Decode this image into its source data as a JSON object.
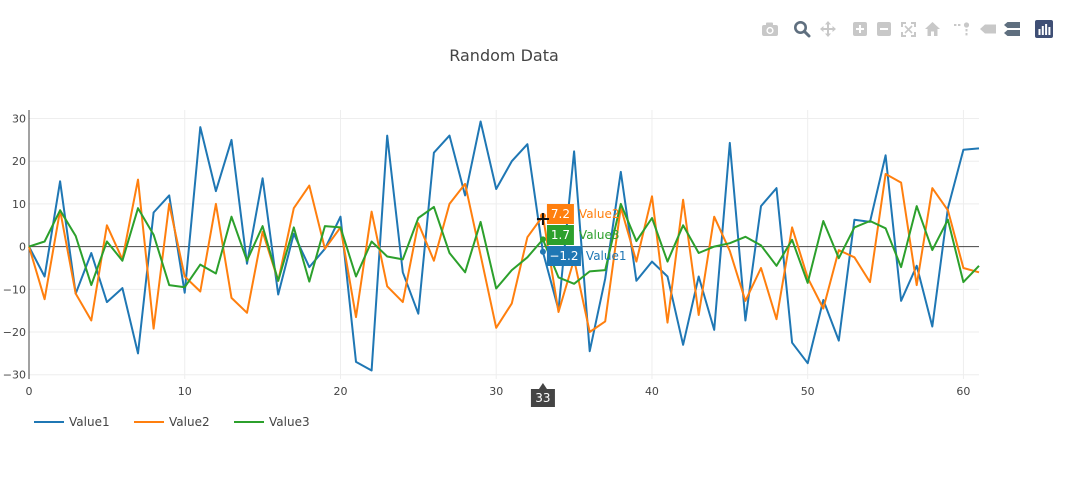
{
  "modebar": {
    "icons": [
      {
        "name": "camera-icon",
        "color": "#c8c8c8"
      },
      {
        "name": "zoom-icon",
        "color": "#5f6f7f"
      },
      {
        "name": "pan-icon",
        "color": "#c8c8c8"
      },
      {
        "name": "zoom-in-icon",
        "color": "#c8c8c8"
      },
      {
        "name": "zoom-out-icon",
        "color": "#c8c8c8"
      },
      {
        "name": "autoscale-icon",
        "color": "#c8c8c8"
      },
      {
        "name": "home-icon",
        "color": "#c8c8c8"
      },
      {
        "name": "spike-lines-icon",
        "color": "#c8c8c8"
      },
      {
        "name": "hover-closest-icon",
        "color": "#c8c8c8"
      },
      {
        "name": "hover-compare-icon",
        "color": "#5f6f7f"
      },
      {
        "name": "plotly-logo-icon",
        "color": "#3f4f75"
      }
    ]
  },
  "chart_data": {
    "type": "line",
    "title": "Random Data",
    "xlabel": "",
    "ylabel": "",
    "xlim": [
      0,
      61
    ],
    "ylim": [
      -31,
      32
    ],
    "x_ticks": [
      0,
      10,
      20,
      30,
      40,
      50,
      60
    ],
    "y_ticks": [
      -30,
      -20,
      -10,
      0,
      10,
      20,
      30
    ],
    "grid": true,
    "zero_line": true,
    "legend_position": "bottom-left",
    "series": [
      {
        "name": "Value1",
        "color": "#1f77b4",
        "x": [
          0,
          1,
          2,
          3,
          4,
          5,
          6,
          7,
          8,
          9,
          10,
          11,
          12,
          13,
          14,
          15,
          16,
          17,
          18,
          19,
          20,
          21,
          22,
          23,
          24,
          25,
          26,
          27,
          28,
          29,
          30,
          31,
          32,
          33,
          34,
          35,
          36,
          37,
          38,
          39,
          40,
          41,
          42,
          43,
          44,
          45,
          46,
          47,
          48,
          49,
          50,
          51,
          52,
          53,
          54,
          55,
          56,
          57,
          58,
          59,
          60,
          61
        ],
        "values": [
          0,
          -7,
          15.3,
          -11,
          -1.5,
          -13,
          -9.7,
          -25,
          8,
          12,
          -10.8,
          28,
          13,
          25,
          -4,
          16,
          -11.2,
          3,
          -4.8,
          -0.5,
          7,
          -27,
          -29,
          26,
          -6,
          -15.7,
          22,
          26,
          12,
          29.3,
          13.5,
          20,
          24,
          -1.2,
          -14.8,
          22.3,
          -24.5,
          -7.5,
          17.5,
          -8,
          -3.5,
          -7,
          -23,
          -7,
          -19.5,
          24.3,
          -17.3,
          9.5,
          13.7,
          -22.5,
          -27.3,
          -12.5,
          -22,
          6.3,
          5.8,
          21.4,
          -12.7,
          -4.5,
          -18.7,
          9,
          22.7,
          23
        ]
      },
      {
        "name": "Value2",
        "color": "#ff7f0e",
        "x": [
          0,
          1,
          2,
          3,
          4,
          5,
          6,
          7,
          8,
          9,
          10,
          11,
          12,
          13,
          14,
          15,
          16,
          17,
          18,
          19,
          20,
          21,
          22,
          23,
          24,
          25,
          26,
          27,
          28,
          29,
          30,
          31,
          32,
          33,
          34,
          35,
          36,
          37,
          38,
          39,
          40,
          41,
          42,
          43,
          44,
          45,
          46,
          47,
          48,
          49,
          50,
          51,
          52,
          53,
          54,
          55,
          56,
          57,
          58,
          59,
          60,
          61
        ],
        "values": [
          0,
          -12.3,
          8.5,
          -11,
          -17.3,
          5,
          -3,
          15.7,
          -19.2,
          10,
          -7,
          -10.5,
          10,
          -12,
          -15.5,
          3.5,
          -8,
          9,
          14.3,
          -0.5,
          4.5,
          -16.5,
          8.2,
          -9.3,
          -13,
          5.5,
          -3.3,
          10,
          14.7,
          -2,
          -19,
          -13.3,
          2.2,
          7.2,
          -15.3,
          -3,
          -20,
          -17.5,
          9.2,
          -3.5,
          11.8,
          -17.8,
          11,
          -16,
          7,
          -1,
          -12.7,
          -5,
          -17,
          4.5,
          -7.3,
          -14.5,
          -0.8,
          -2.5,
          -8.3,
          17,
          15,
          -9,
          13.7,
          8.5,
          -5,
          -6
        ]
      },
      {
        "name": "Value3",
        "color": "#2ca02c",
        "x": [
          0,
          1,
          2,
          3,
          4,
          5,
          6,
          7,
          8,
          9,
          10,
          11,
          12,
          13,
          14,
          15,
          16,
          17,
          18,
          19,
          20,
          21,
          22,
          23,
          24,
          25,
          26,
          27,
          28,
          29,
          30,
          31,
          32,
          33,
          34,
          35,
          36,
          37,
          38,
          39,
          40,
          41,
          42,
          43,
          44,
          45,
          46,
          47,
          48,
          49,
          50,
          51,
          52,
          53,
          54,
          55,
          56,
          57,
          58,
          59,
          60,
          61
        ],
        "values": [
          0,
          1.2,
          8.5,
          2.5,
          -9,
          1.2,
          -3.3,
          9,
          2.8,
          -9,
          -9.5,
          -4.2,
          -6.3,
          7,
          -3.3,
          4.8,
          -8,
          4.5,
          -8.2,
          4.8,
          4.5,
          -7,
          1.2,
          -2.3,
          -3,
          6.7,
          9.3,
          -1.5,
          -6,
          5.8,
          -9.8,
          -5.5,
          -2.5,
          1.7,
          -7.2,
          -8.7,
          -5.8,
          -5.5,
          10,
          1.3,
          6.7,
          -3.5,
          5,
          -1.5,
          0,
          0.8,
          2.3,
          0.3,
          -4.5,
          1.6,
          -8.5,
          6,
          -2.7,
          4.5,
          6,
          4.3,
          -4.8,
          9.5,
          -0.8,
          6.3,
          -8.3,
          -4.5
        ]
      }
    ],
    "hover": {
      "x": 33,
      "x_label": "33",
      "labels": [
        {
          "series": "Value2",
          "value_text": "7.2"
        },
        {
          "series": "Value3",
          "value_text": "1.7"
        },
        {
          "series": "Value1",
          "value_text": "−1.2"
        }
      ]
    }
  }
}
